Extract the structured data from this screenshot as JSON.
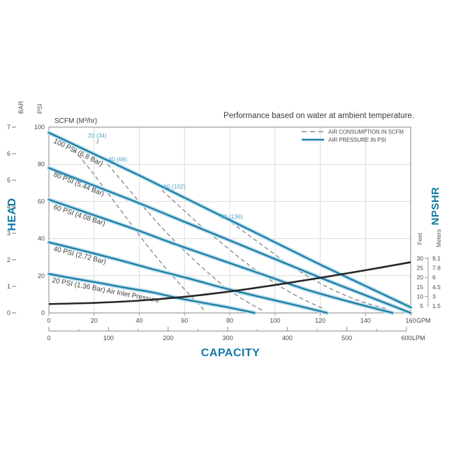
{
  "colors": {
    "accent_blue": "#1378a5",
    "pressure_line": "#1f7fa6",
    "pressure_halo": "#bfe0ee",
    "consumption_line": "#8c8c8c",
    "consumption_label": "#4fa5c8",
    "npshr_line": "#262626",
    "grid": "#dcdcdc",
    "plot_border": "#999999",
    "axis_text": "#4a4a4a",
    "curve_label_text": "#3f3f3f",
    "legend_text": "#4a4a4a"
  },
  "chart_data": {
    "type": "line",
    "title": "Performance based on water at ambient temperature.",
    "xlabel": "CAPACITY",
    "ylabel_left": "HEAD",
    "ylabel_right": "NPSHR",
    "scfm_header": "SCFM (M³/hr)",
    "legend": [
      {
        "label": "AIR CONSUMPTION IN SCFM",
        "style": "dashed"
      },
      {
        "label": "AIR PRESSURE IN PSI",
        "style": "solid"
      }
    ],
    "axes": {
      "bar_label": "BAR",
      "psi_label": "PSI",
      "gpm_unit": "GPM",
      "lpm_unit": "LPM",
      "feet_label": "Feet",
      "meters_label": "Meters",
      "bar_ticks": [
        7,
        6,
        5,
        4,
        3,
        2,
        1,
        0
      ],
      "psi_ticks": [
        100,
        80,
        60,
        40,
        20,
        0
      ],
      "gpm_ticks": [
        0,
        20,
        40,
        60,
        80,
        100,
        120,
        140,
        160
      ],
      "lpm_ticks": [
        0,
        100,
        200,
        300,
        400,
        500,
        600
      ],
      "gpm_range": [
        0,
        160
      ],
      "psi_range": [
        0,
        100
      ],
      "bar_range": [
        0,
        7
      ],
      "lpm_range": [
        0,
        600
      ],
      "npshr_feet_ticks": [
        30,
        25,
        20,
        15,
        10,
        5
      ],
      "npshr_meters_ticks": [
        "9.1",
        "7.6",
        "6",
        "4.5",
        "3",
        "1.5"
      ]
    },
    "air_pressure_curves_gpm_vs_psi": [
      {
        "label": "100 PSI (6.8 Bar)",
        "points": [
          [
            0,
            97
          ],
          [
            20,
            85.5
          ],
          [
            40,
            74
          ],
          [
            60,
            62
          ],
          [
            80,
            50
          ],
          [
            100,
            38
          ],
          [
            120,
            26
          ],
          [
            140,
            14.5
          ],
          [
            160,
            3
          ]
        ]
      },
      {
        "label": "80 PSI (5.44 Bar)",
        "points": [
          [
            0,
            78
          ],
          [
            20,
            68.5
          ],
          [
            40,
            59
          ],
          [
            60,
            49
          ],
          [
            80,
            39
          ],
          [
            100,
            29
          ],
          [
            120,
            19
          ],
          [
            140,
            9.5
          ],
          [
            160,
            0
          ]
        ]
      },
      {
        "label": "60 PSI (4.08 Bar)",
        "points": [
          [
            0,
            61
          ],
          [
            19,
            53
          ],
          [
            38,
            45
          ],
          [
            57,
            36.5
          ],
          [
            76,
            28.5
          ],
          [
            95,
            20.5
          ],
          [
            114,
            12.5
          ],
          [
            133,
            6
          ],
          [
            152,
            0
          ]
        ]
      },
      {
        "label": "40 PSI (2.72 Bar)",
        "points": [
          [
            0,
            38
          ],
          [
            15,
            33.5
          ],
          [
            31,
            28.5
          ],
          [
            46,
            23.5
          ],
          [
            62,
            18.5
          ],
          [
            77,
            13.5
          ],
          [
            92,
            9
          ],
          [
            108,
            4.5
          ],
          [
            123,
            0
          ]
        ]
      },
      {
        "label": "20 PSI (1.36 Bar) Air Inlet Pressure",
        "points": [
          [
            0,
            21
          ],
          [
            11,
            18.5
          ],
          [
            23,
            16
          ],
          [
            34,
            13.5
          ],
          [
            46,
            11
          ],
          [
            57,
            8
          ],
          [
            68,
            5.5
          ],
          [
            80,
            2.8
          ],
          [
            91,
            0
          ]
        ]
      }
    ],
    "air_consumption_curves_gpm_vs_psi": [
      {
        "label": "20 (34)",
        "points": [
          [
            11,
            88
          ],
          [
            19,
            76
          ],
          [
            27,
            63
          ],
          [
            35,
            50
          ],
          [
            43,
            37
          ],
          [
            51,
            25
          ],
          [
            59,
            14
          ],
          [
            66,
            5
          ],
          [
            69,
            1
          ]
        ]
      },
      {
        "label": "40 (68)",
        "points": [
          [
            26,
            80
          ],
          [
            35,
            67
          ],
          [
            44,
            54
          ],
          [
            53,
            42
          ],
          [
            62,
            31
          ],
          [
            71,
            21
          ],
          [
            80,
            12
          ],
          [
            89,
            5
          ],
          [
            95,
            1
          ]
        ]
      },
      {
        "label": "60 (102)",
        "points": [
          [
            50,
            66
          ],
          [
            59,
            56
          ],
          [
            68,
            46
          ],
          [
            77,
            37
          ],
          [
            86,
            28
          ],
          [
            95,
            20
          ],
          [
            104,
            13
          ],
          [
            113,
            7
          ],
          [
            122,
            2
          ]
        ]
      },
      {
        "label": "80 (136)",
        "points": [
          [
            78,
            51
          ],
          [
            87,
            43
          ],
          [
            96,
            35
          ],
          [
            105,
            27
          ],
          [
            114,
            20
          ],
          [
            123,
            14
          ],
          [
            132,
            9
          ],
          [
            141,
            5
          ],
          [
            150,
            2
          ]
        ]
      }
    ],
    "npshr_curve_gpm_vs_feet": {
      "points": [
        [
          0,
          6
        ],
        [
          20,
          6.6
        ],
        [
          40,
          7.8
        ],
        [
          60,
          9.8
        ],
        [
          80,
          12.6
        ],
        [
          100,
          16
        ],
        [
          120,
          19.8
        ],
        [
          140,
          23.8
        ],
        [
          160,
          28
        ]
      ]
    }
  }
}
